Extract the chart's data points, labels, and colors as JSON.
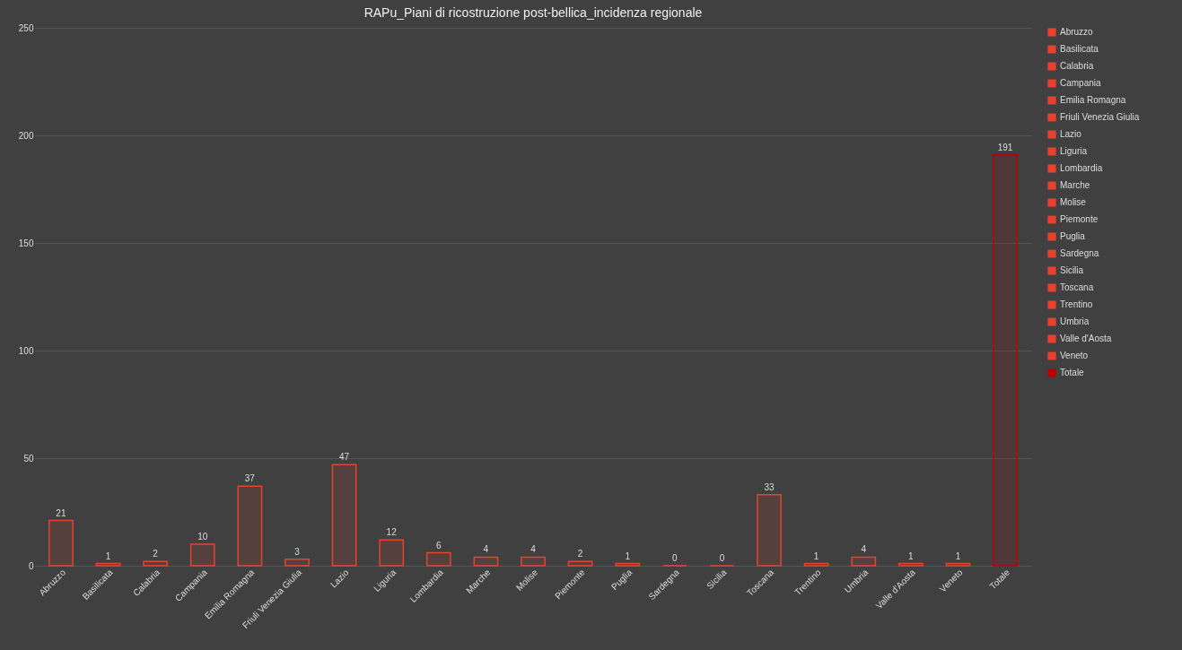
{
  "chart_data": {
    "type": "bar",
    "title": "RAPu_Piani di ricostruzione post-bellica_incidenza regionale",
    "categories": [
      "Abruzzo",
      "Basilicata",
      "Calabria",
      "Campania",
      "Emilia Romagna",
      "Friuli Venezia Giulia",
      "Lazio",
      "Liguria",
      "Lombardia",
      "Marche",
      "Molise",
      "Piemonte",
      "Puglia",
      "Sardegna",
      "Sicilia",
      "Toscana",
      "Trentino",
      "Umbria",
      "Valle d'Aosta",
      "Veneto",
      "Totale"
    ],
    "series": [
      {
        "name": "Abruzzo",
        "color": "#e8412c",
        "values": [
          21,
          null,
          null,
          null,
          null,
          null,
          null,
          null,
          null,
          null,
          null,
          null,
          null,
          null,
          null,
          null,
          null,
          null,
          null,
          null,
          null
        ]
      },
      {
        "name": "Basilicata",
        "color": "#e8412c",
        "values": [
          null,
          1,
          null,
          null,
          null,
          null,
          null,
          null,
          null,
          null,
          null,
          null,
          null,
          null,
          null,
          null,
          null,
          null,
          null,
          null,
          null
        ]
      },
      {
        "name": "Calabria",
        "color": "#e8412c",
        "values": [
          null,
          null,
          2,
          null,
          null,
          null,
          null,
          null,
          null,
          null,
          null,
          null,
          null,
          null,
          null,
          null,
          null,
          null,
          null,
          null,
          null
        ]
      },
      {
        "name": "Campania",
        "color": "#e8412c",
        "values": [
          null,
          null,
          null,
          10,
          null,
          null,
          null,
          null,
          null,
          null,
          null,
          null,
          null,
          null,
          null,
          null,
          null,
          null,
          null,
          null,
          null
        ]
      },
      {
        "name": "Emilia Romagna",
        "color": "#e8412c",
        "values": [
          null,
          null,
          null,
          null,
          37,
          null,
          null,
          null,
          null,
          null,
          null,
          null,
          null,
          null,
          null,
          null,
          null,
          null,
          null,
          null,
          null
        ]
      },
      {
        "name": "Friuli Venezia Giulia",
        "color": "#e8412c",
        "values": [
          null,
          null,
          null,
          null,
          null,
          3,
          null,
          null,
          null,
          null,
          null,
          null,
          null,
          null,
          null,
          null,
          null,
          null,
          null,
          null,
          null
        ]
      },
      {
        "name": "Lazio",
        "color": "#e8412c",
        "values": [
          null,
          null,
          null,
          null,
          null,
          null,
          47,
          null,
          null,
          null,
          null,
          null,
          null,
          null,
          null,
          null,
          null,
          null,
          null,
          null,
          null
        ]
      },
      {
        "name": "Liguria",
        "color": "#e8412c",
        "values": [
          null,
          null,
          null,
          null,
          null,
          null,
          null,
          12,
          null,
          null,
          null,
          null,
          null,
          null,
          null,
          null,
          null,
          null,
          null,
          null,
          null
        ]
      },
      {
        "name": "Lombardia",
        "color": "#e8412c",
        "values": [
          null,
          null,
          null,
          null,
          null,
          null,
          null,
          null,
          6,
          null,
          null,
          null,
          null,
          null,
          null,
          null,
          null,
          null,
          null,
          null,
          null
        ]
      },
      {
        "name": "Marche",
        "color": "#e8412c",
        "values": [
          null,
          null,
          null,
          null,
          null,
          null,
          null,
          null,
          null,
          4,
          null,
          null,
          null,
          null,
          null,
          null,
          null,
          null,
          null,
          null,
          null
        ]
      },
      {
        "name": "Molise",
        "color": "#e8412c",
        "values": [
          null,
          null,
          null,
          null,
          null,
          null,
          null,
          null,
          null,
          null,
          4,
          null,
          null,
          null,
          null,
          null,
          null,
          null,
          null,
          null,
          null
        ]
      },
      {
        "name": "Piemonte",
        "color": "#e8412c",
        "values": [
          null,
          null,
          null,
          null,
          null,
          null,
          null,
          null,
          null,
          null,
          null,
          2,
          null,
          null,
          null,
          null,
          null,
          null,
          null,
          null,
          null
        ]
      },
      {
        "name": "Puglia",
        "color": "#e8412c",
        "values": [
          null,
          null,
          null,
          null,
          null,
          null,
          null,
          null,
          null,
          null,
          null,
          null,
          1,
          null,
          null,
          null,
          null,
          null,
          null,
          null,
          null
        ]
      },
      {
        "name": "Sardegna",
        "color": "#e8412c",
        "values": [
          null,
          null,
          null,
          null,
          null,
          null,
          null,
          null,
          null,
          null,
          null,
          null,
          null,
          0,
          null,
          null,
          null,
          null,
          null,
          null,
          null
        ]
      },
      {
        "name": "Sicilia",
        "color": "#e8412c",
        "values": [
          null,
          null,
          null,
          null,
          null,
          null,
          null,
          null,
          null,
          null,
          null,
          null,
          null,
          null,
          0,
          null,
          null,
          null,
          null,
          null,
          null
        ]
      },
      {
        "name": "Toscana",
        "color": "#e8412c",
        "values": [
          null,
          null,
          null,
          null,
          null,
          null,
          null,
          null,
          null,
          null,
          null,
          null,
          null,
          null,
          null,
          33,
          null,
          null,
          null,
          null,
          null
        ]
      },
      {
        "name": "Trentino",
        "color": "#e8412c",
        "values": [
          null,
          null,
          null,
          null,
          null,
          null,
          null,
          null,
          null,
          null,
          null,
          null,
          null,
          null,
          null,
          null,
          1,
          null,
          null,
          null,
          null
        ]
      },
      {
        "name": "Umbria",
        "color": "#e8412c",
        "values": [
          null,
          null,
          null,
          null,
          null,
          null,
          null,
          null,
          null,
          null,
          null,
          null,
          null,
          null,
          null,
          null,
          null,
          4,
          null,
          null,
          null
        ]
      },
      {
        "name": "Valle d'Aosta",
        "color": "#e8412c",
        "values": [
          null,
          null,
          null,
          null,
          null,
          null,
          null,
          null,
          null,
          null,
          null,
          null,
          null,
          null,
          null,
          null,
          null,
          null,
          1,
          null,
          null
        ]
      },
      {
        "name": "Veneto",
        "color": "#e8412c",
        "values": [
          null,
          null,
          null,
          null,
          null,
          null,
          null,
          null,
          null,
          null,
          null,
          null,
          null,
          null,
          null,
          null,
          null,
          null,
          null,
          1,
          null
        ]
      },
      {
        "name": "Totale",
        "color": "#c00000",
        "values": [
          null,
          null,
          null,
          null,
          null,
          null,
          null,
          null,
          null,
          null,
          null,
          null,
          null,
          null,
          null,
          null,
          null,
          null,
          null,
          null,
          191
        ]
      }
    ],
    "ylim": [
      0,
      250
    ],
    "yticks": [
      0,
      50,
      100,
      150,
      200,
      250
    ],
    "grid": "y",
    "legend": "right",
    "data_labels": true
  }
}
